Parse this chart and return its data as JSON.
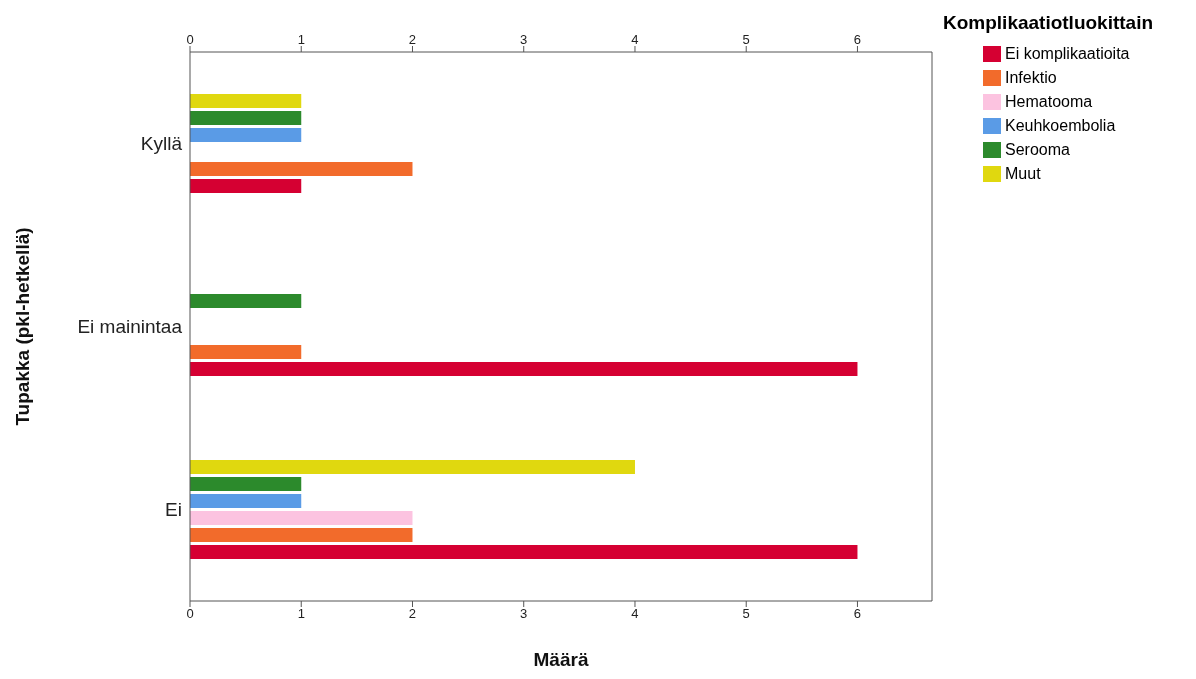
{
  "chart_data": {
    "type": "bar",
    "orientation": "horizontal",
    "xlabel": "Määrä",
    "ylabel": "Tupakka (pkl-hetkellä)",
    "legend_title": "Komplikaatiotluokittain",
    "legend": "top right",
    "categories": [
      "Kyllä",
      "Ei mainintaa",
      "Ei"
    ],
    "xlim": [
      0,
      6.67
    ],
    "xticks": [
      0,
      1,
      2,
      3,
      4,
      5,
      6
    ],
    "x2lim": [
      0,
      6.67
    ],
    "x2ticks": [
      0,
      1,
      2,
      3,
      4,
      5,
      6
    ],
    "series": [
      {
        "name": "Ei komplikaatioita",
        "color": "#d50032",
        "values": [
          1,
          6,
          6
        ]
      },
      {
        "name": "Infektio",
        "color": "#f26b2b",
        "values": [
          2,
          1,
          2
        ]
      },
      {
        "name": "Hematooma",
        "color": "#fcc3e0",
        "values": [
          null,
          null,
          2
        ]
      },
      {
        "name": "Keuhkoembolia",
        "color": "#5a9be6",
        "values": [
          1,
          null,
          1
        ]
      },
      {
        "name": "Serooma",
        "color": "#2c8a2c",
        "values": [
          1,
          1,
          1
        ]
      },
      {
        "name": "Muut",
        "color": "#e0d80f",
        "values": [
          1,
          null,
          4
        ]
      }
    ]
  }
}
